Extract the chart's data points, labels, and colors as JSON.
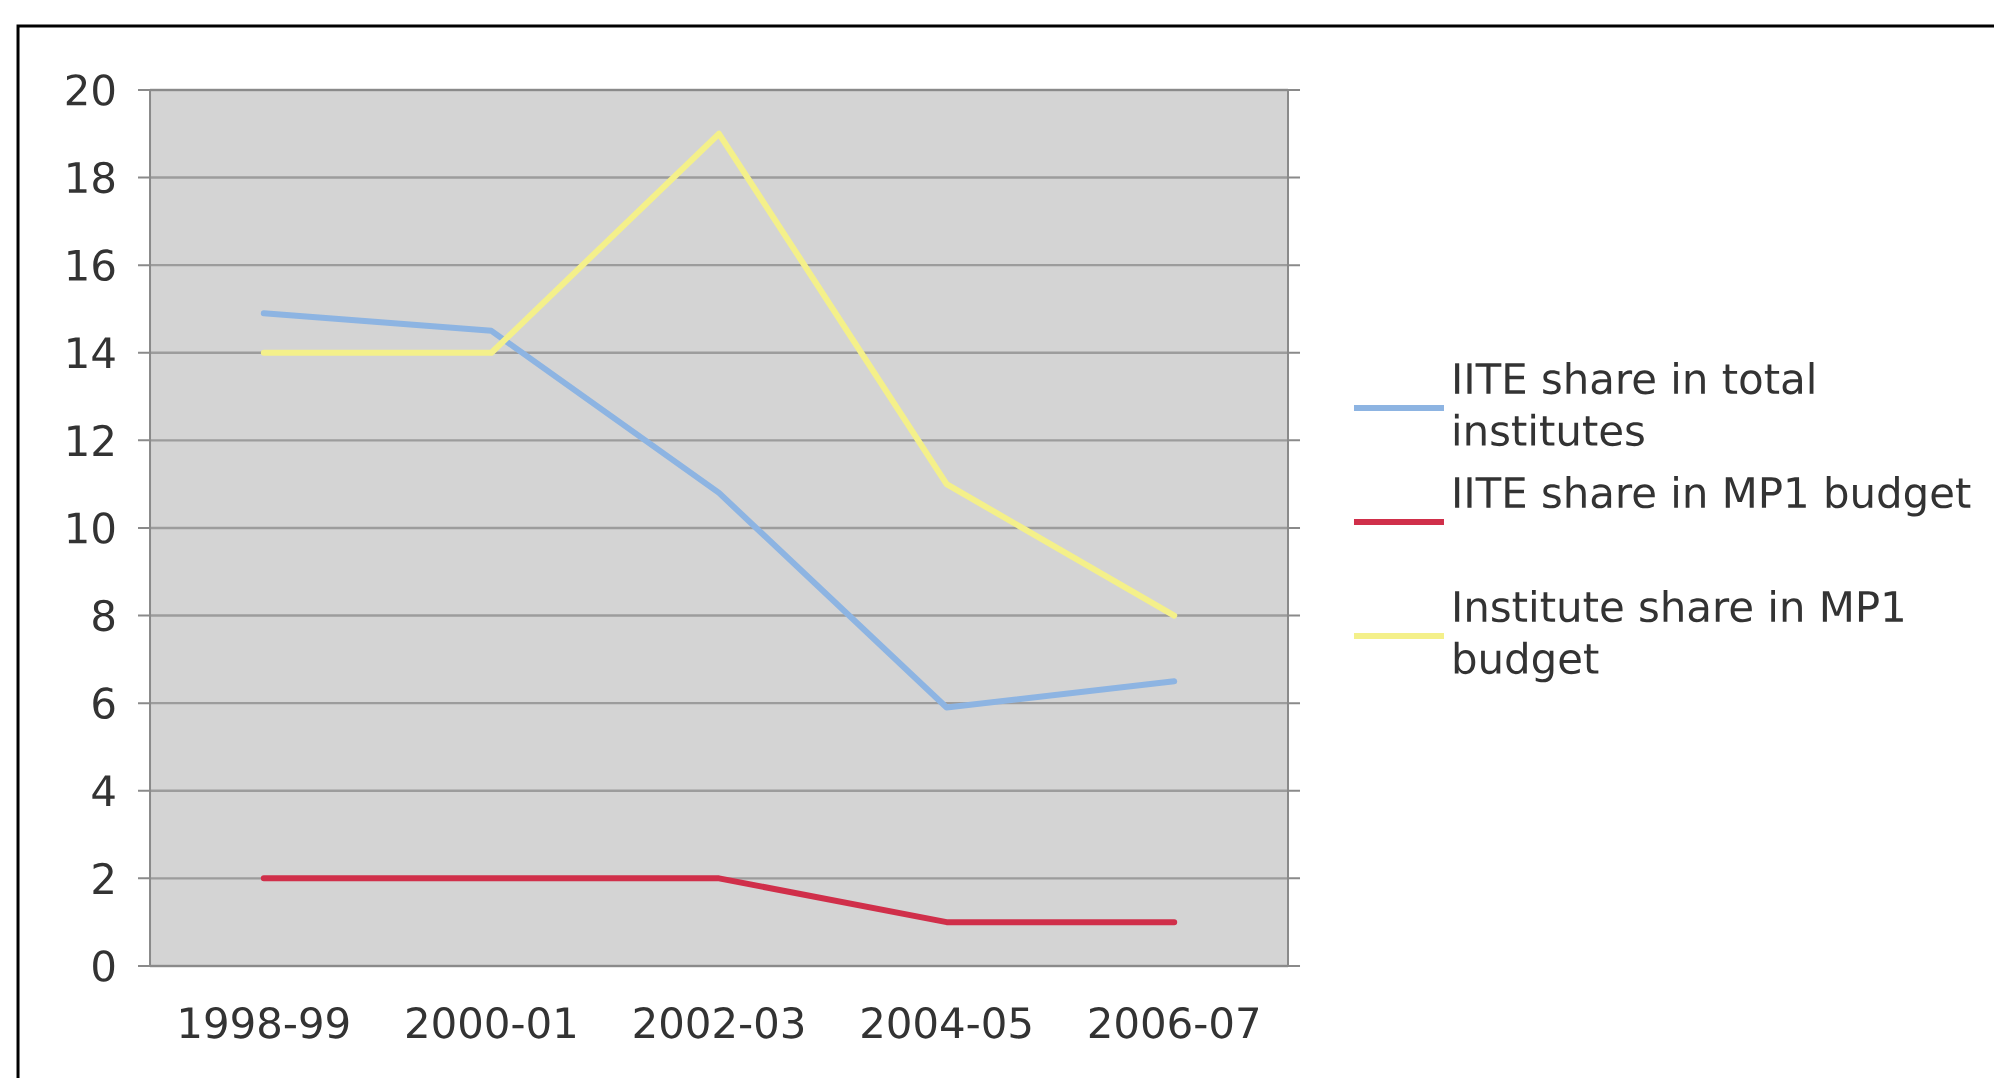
{
  "chart_data": {
    "type": "line",
    "categories": [
      "1998-99",
      "2000-01",
      "2002-03",
      "2004-05",
      "2006-07"
    ],
    "series": [
      {
        "name": "IITE share in total institutes",
        "color": "#8db4e2",
        "values": [
          14.9,
          14.5,
          10.8,
          5.9,
          6.5
        ]
      },
      {
        "name": "IITE share in MP1 budget",
        "color": "#d02f4a",
        "values": [
          2,
          2,
          2,
          1,
          1
        ]
      },
      {
        "name": "Institute share in MP1 budget",
        "color": "#f4f08a",
        "values": [
          14,
          14,
          19,
          11,
          8
        ]
      }
    ],
    "ylim": [
      0,
      20
    ],
    "yticks": [
      0,
      2,
      4,
      6,
      8,
      10,
      12,
      14,
      16,
      18,
      20
    ],
    "grid": "y",
    "legend": "right",
    "line_style": "solid"
  }
}
